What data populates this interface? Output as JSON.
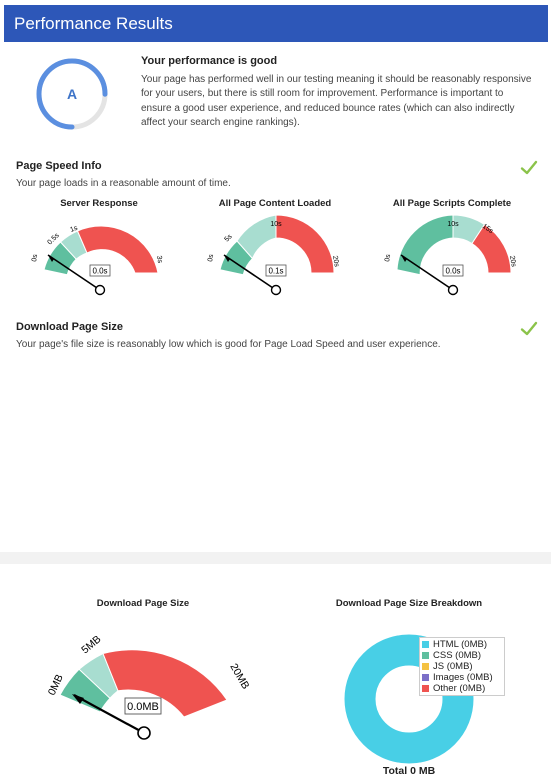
{
  "header": {
    "title": "Performance Results"
  },
  "grade": {
    "letter": "A",
    "progress": 0.75
  },
  "performance": {
    "title": "Your performance is good",
    "description": "Your page has performed well in our testing meaning it should be reasonably responsive for your users, but there is still room for improvement. Performance is important to ensure a good user experience, and reduced bounce rates (which can also indirectly affect your search engine rankings)."
  },
  "page_speed": {
    "title": "Page Speed Info",
    "description": "Your page loads in a reasonable amount of time.",
    "gauges": [
      {
        "title": "Server Response",
        "value_label": "0.0s",
        "ticks": [
          "0s",
          "0.5s",
          "1s",
          "3s"
        ]
      },
      {
        "title": "All Page Content Loaded",
        "value_label": "0.1s",
        "ticks": [
          "0s",
          "5s",
          "10s",
          "20s"
        ]
      },
      {
        "title": "All Page Scripts Complete",
        "value_label": "0.0s",
        "ticks": [
          "0s",
          "10s",
          "15s",
          "20s"
        ]
      }
    ]
  },
  "download_size": {
    "title": "Download Page Size",
    "description": "Your page's file size is reasonably low which is good for Page Load Speed and user experience."
  },
  "size_gauge": {
    "title": "Download Page Size",
    "value_label": "0.0MB",
    "ticks": [
      "0MB",
      "5MB",
      "20MB"
    ]
  },
  "breakdown": {
    "title": "Download Page Size Breakdown",
    "legend": [
      {
        "label": "HTML (0MB)",
        "color": "#48cfe6"
      },
      {
        "label": "CSS (0MB)",
        "color": "#5fbf9f"
      },
      {
        "label": "JS (0MB)",
        "color": "#f5c242"
      },
      {
        "label": "Images (0MB)",
        "color": "#7b6fc8"
      },
      {
        "label": "Other (0MB)",
        "color": "#ef5350"
      }
    ],
    "total_label": "Total 0 MB"
  },
  "colors": {
    "green": "#5fbf9f",
    "light_green": "#a8ddd0",
    "red": "#ef5350",
    "header": "#2d57b8",
    "check": "#8bc34a",
    "donut": "#48cfe6"
  }
}
